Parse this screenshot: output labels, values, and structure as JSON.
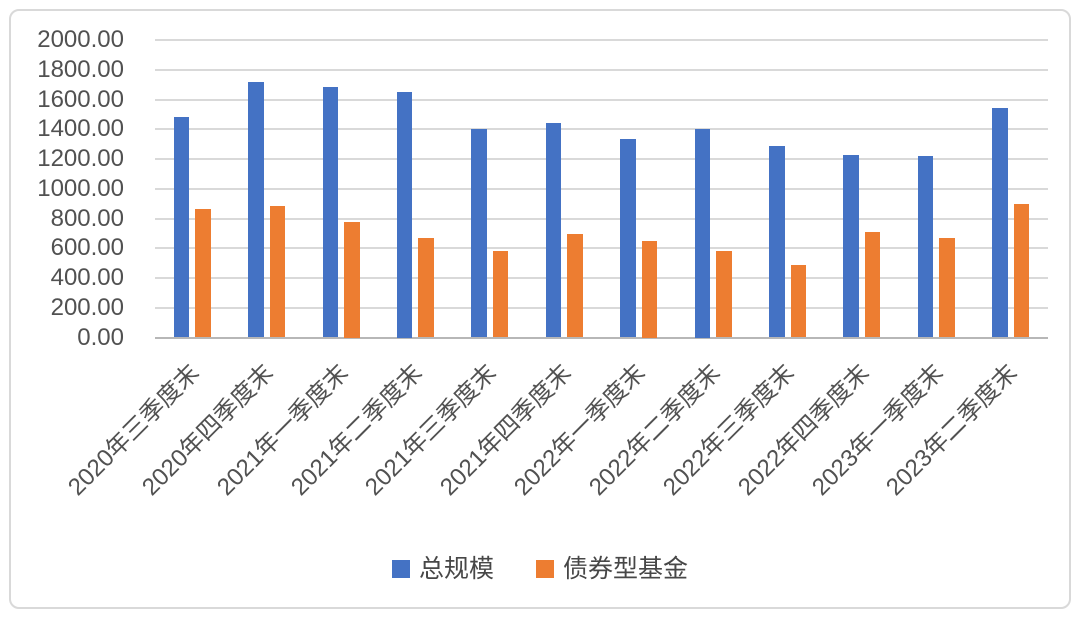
{
  "chart_data": {
    "type": "bar",
    "title": "",
    "xlabel": "",
    "ylabel": "",
    "categories": [
      "2020年三季度末",
      "2020年四季度末",
      "2021年一季度末",
      "2021年二季度末",
      "2021年三季度末",
      "2021年四季度末",
      "2022年一季度末",
      "2022年二季度末",
      "2022年三季度末",
      "2022年四季度末",
      "2023年一季度末",
      "2023年二季度末"
    ],
    "series": [
      {
        "name": "总规模",
        "color": "#4472C4",
        "values": [
          1480,
          1715,
          1685,
          1650,
          1405,
          1445,
          1335,
          1400,
          1285,
          1230,
          1220,
          1545
        ]
      },
      {
        "name": "债券型基金",
        "color": "#ED7D31",
        "values": [
          865,
          885,
          775,
          670,
          580,
          695,
          650,
          580,
          490,
          710,
          670,
          895
        ]
      }
    ],
    "ylim": [
      0,
      2000
    ],
    "ytick_step": 200,
    "yticks": [
      "0.00",
      "200.00",
      "400.00",
      "600.00",
      "800.00",
      "1000.00",
      "1200.00",
      "1400.00",
      "1600.00",
      "1800.00",
      "2000.00"
    ],
    "grid": true,
    "legend_position": "bottom"
  },
  "colors": {
    "series_total": "#4472C4",
    "series_bond": "#ED7D31",
    "gridline": "#d9d9d9",
    "axis_line": "#b7b7b7",
    "tick_text": "#515151",
    "frame_border": "#d9d9d9",
    "background": "#ffffff"
  }
}
